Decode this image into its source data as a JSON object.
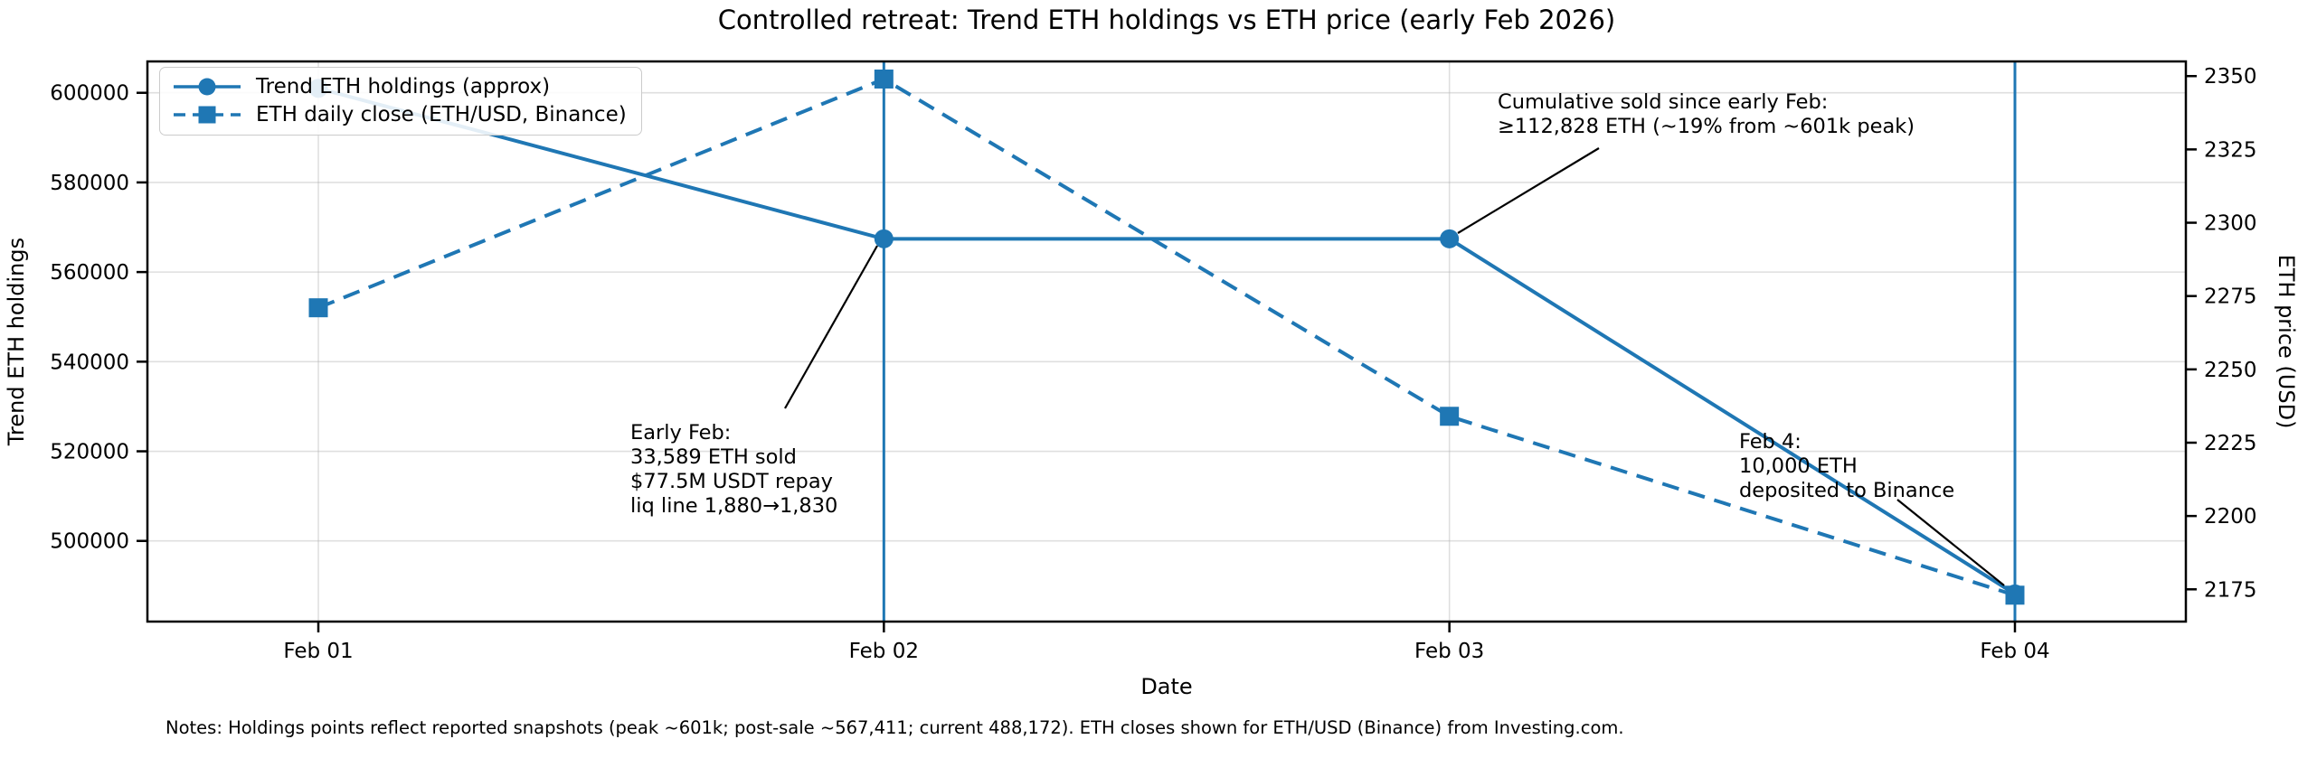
{
  "title": "Controlled retreat: Trend ETH holdings vs ETH price (early Feb 2026)",
  "notes": "Notes: Holdings points reflect reported snapshots (peak ~601k; post-sale ~567,411; current 488,172). ETH closes shown for ETH/USD (Binance) from Investing.com.",
  "chart_data": {
    "type": "line",
    "x": [
      "Feb 01",
      "Feb 02",
      "Feb 03",
      "Feb 04"
    ],
    "xlabel": "Date",
    "ylabel_left": "Trend ETH holdings",
    "ylabel_right": "ETH price (USD)",
    "ylim_left": [
      482000,
      607000
    ],
    "ylim_right": [
      2164,
      2355
    ],
    "yticks_left": [
      600000,
      580000,
      560000,
      540000,
      520000,
      500000
    ],
    "yticks_right": [
      2350,
      2325,
      2300,
      2275,
      2250,
      2225,
      2200,
      2175
    ],
    "grid": true,
    "legend_position": "upper left",
    "vline_color": "#1f77b4",
    "vlines": [
      "Feb 02",
      "Feb 04"
    ],
    "series": [
      {
        "name": "Trend ETH holdings (approx)",
        "axis": "left",
        "style": "solid",
        "marker": "circle",
        "color": "#1f77b4",
        "values": [
          601000,
          567411,
          567411,
          488172
        ]
      },
      {
        "name": "ETH daily close (ETH/USD, Binance)",
        "axis": "right",
        "style": "dashed",
        "marker": "square",
        "color": "#1f77b4",
        "values": [
          2271,
          2349,
          2234,
          2173
        ]
      }
    ],
    "annotations": [
      {
        "id": "cumulative",
        "text": "Cumulative sold since early Feb:\n≥112,828 ETH (~19% from ~601k peak)"
      },
      {
        "id": "early_feb",
        "text": "Early Feb:\n33,589 ETH sold\n$77.5M USDT repay\nliq line 1,880→1,830"
      },
      {
        "id": "feb4",
        "text": "Feb 4:\n10,000 ETH\ndeposited to Binance"
      }
    ]
  }
}
